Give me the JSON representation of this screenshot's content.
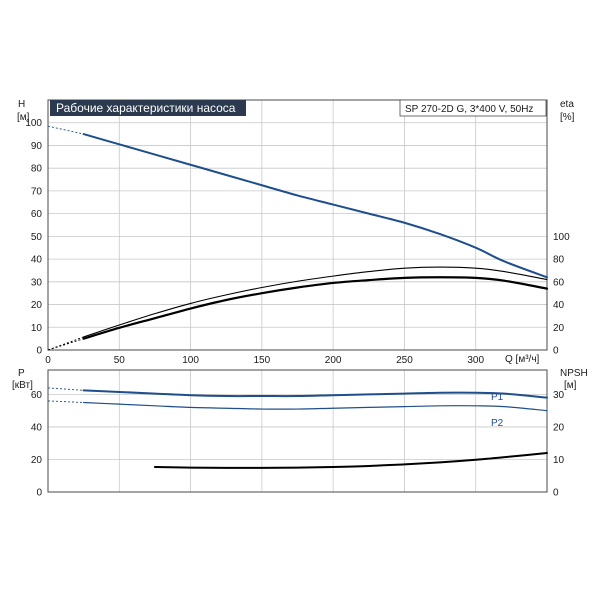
{
  "header": {
    "title": "Рабочие характеристики насоса",
    "model": "SP 270-2D G, 3*400 V, 50Hz"
  },
  "axes": {
    "h_label": "H",
    "h_unit": "[м]",
    "eta_label": "eta",
    "eta_unit": "[%]",
    "q_label": "Q [м³/ч]",
    "p_label": "P",
    "p_unit": "[кВт]",
    "npsh_label": "NPSH",
    "npsh_unit": "[м]"
  },
  "colors": {
    "blue": "#1f4e8c",
    "black": "#000000",
    "title_bg": "#2b3a4e"
  },
  "chart_data": [
    {
      "type": "line",
      "name": "upper",
      "xlim": [
        0,
        350
      ],
      "ylim": [
        0,
        110
      ],
      "xticks": [
        0,
        50,
        100,
        150,
        200,
        250,
        300
      ],
      "yticks": [
        0,
        10,
        20,
        30,
        40,
        50,
        60,
        70,
        80,
        90,
        100
      ],
      "y2lim": [
        0,
        220
      ],
      "y2ticks": [
        0,
        20,
        40,
        60,
        80,
        100
      ],
      "series": [
        {
          "key": "H",
          "color": "#1f4e8c",
          "axis": "left",
          "dashed_x": [
            0,
            25
          ],
          "x": [
            25,
            50,
            75,
            100,
            125,
            150,
            175,
            200,
            225,
            250,
            275,
            300,
            320,
            350
          ],
          "y": [
            95,
            90.5,
            86,
            81.5,
            77,
            72.5,
            68,
            64,
            60,
            56,
            51,
            45,
            39,
            32
          ]
        },
        {
          "key": "eta_total",
          "color": "#000000",
          "axis": "right",
          "width": 2.2,
          "dashed_x": [
            0,
            25
          ],
          "x": [
            25,
            50,
            75,
            100,
            125,
            150,
            175,
            200,
            225,
            250,
            275,
            300,
            320,
            350
          ],
          "y": [
            10,
            19.5,
            28,
            36.5,
            44,
            50,
            55,
            59,
            61.5,
            63.5,
            64,
            63.5,
            61,
            54
          ]
        },
        {
          "key": "eta_pump",
          "color": "#000000",
          "axis": "right",
          "width": 1.1,
          "dashed_x": [
            0,
            25
          ],
          "x": [
            25,
            50,
            75,
            100,
            125,
            150,
            175,
            200,
            225,
            250,
            275,
            300,
            320,
            350
          ],
          "y": [
            11.5,
            22,
            32,
            41,
            48.5,
            55,
            60.5,
            65,
            69,
            72,
            73,
            72,
            69,
            62
          ]
        }
      ]
    },
    {
      "type": "line",
      "name": "lower",
      "xlim": [
        0,
        350
      ],
      "ylim": [
        0,
        75
      ],
      "yticks": [
        0,
        20,
        40,
        60
      ],
      "y2lim": [
        0,
        37.5
      ],
      "y2ticks": [
        0,
        10,
        20,
        30
      ],
      "series": [
        {
          "key": "P1",
          "label": "P1",
          "color": "#1f4e8c",
          "axis": "left",
          "width": 2,
          "dashed_x": [
            0,
            25
          ],
          "x": [
            25,
            50,
            75,
            100,
            125,
            150,
            175,
            200,
            225,
            250,
            275,
            300,
            320,
            350
          ],
          "y": [
            62.5,
            61.5,
            60.5,
            59.5,
            59,
            59,
            59,
            59.5,
            60,
            60.5,
            61,
            61,
            60.5,
            58
          ]
        },
        {
          "key": "P2",
          "label": "P2",
          "color": "#1f4e8c",
          "axis": "left",
          "width": 1.2,
          "dashed_x": [
            0,
            25
          ],
          "x": [
            25,
            50,
            75,
            100,
            125,
            150,
            175,
            200,
            225,
            250,
            275,
            300,
            320,
            350
          ],
          "y": [
            55,
            54,
            53,
            52,
            51.5,
            51,
            51,
            51.5,
            52,
            52.5,
            53,
            53,
            52.5,
            50
          ]
        },
        {
          "key": "NPSH",
          "color": "#000000",
          "axis": "right",
          "width": 2,
          "x": [
            75,
            100,
            125,
            150,
            175,
            200,
            225,
            250,
            275,
            300,
            325,
            350
          ],
          "y": [
            7.7,
            7.5,
            7.4,
            7.4,
            7.5,
            7.7,
            8.0,
            8.5,
            9.1,
            9.9,
            10.9,
            12.0
          ]
        }
      ]
    }
  ]
}
